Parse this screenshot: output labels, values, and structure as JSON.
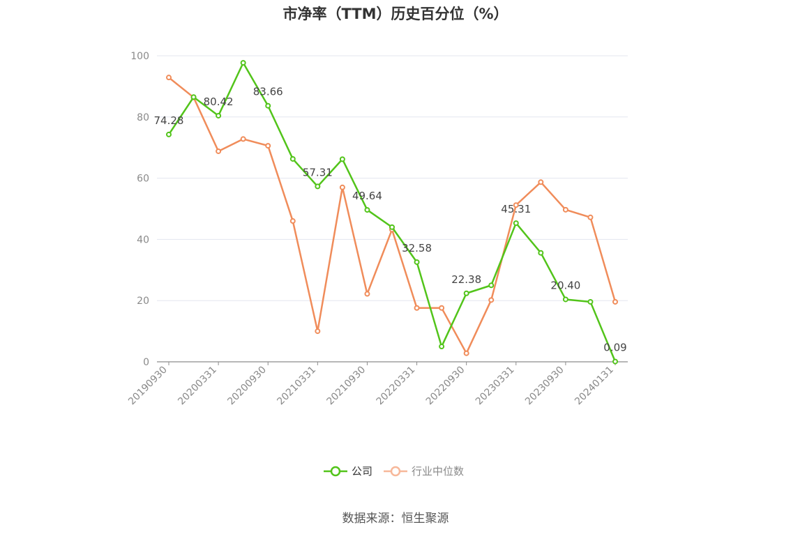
{
  "chart_data": {
    "type": "line",
    "title": "市净率（TTM）历史百分位（%）",
    "ylim": [
      0,
      100
    ],
    "yticks": [
      0,
      20,
      40,
      60,
      80,
      100
    ],
    "grid": true,
    "legend_position": "bottom-center",
    "x": [
      "20190930",
      "20191231",
      "20200331",
      "20200630",
      "20200930",
      "20201231",
      "20210331",
      "20210630",
      "20210930",
      "20211231",
      "20220331",
      "20220630",
      "20220930",
      "20221231",
      "20230331",
      "20230630",
      "20230930",
      "20231231",
      "20240131"
    ],
    "x_tick_labels": [
      "20190930",
      "20200331",
      "20200930",
      "20210331",
      "20210930",
      "20220331",
      "20220930",
      "20230331",
      "20230930",
      "20240131"
    ],
    "series": [
      {
        "name": "公司",
        "color": "#52c41a",
        "values": [
          74.28,
          86.5,
          80.42,
          97.7,
          83.66,
          66.3,
          57.31,
          66.2,
          49.64,
          44.0,
          32.58,
          5.0,
          22.38,
          25.0,
          45.31,
          35.6,
          20.4,
          19.6,
          0.09
        ],
        "labels": [
          "74.28",
          "",
          "80.42",
          "",
          "83.66",
          "",
          "57.31",
          "",
          "49.64",
          "",
          "32.58",
          "",
          "22.38",
          "",
          "45.31",
          "",
          "20.40",
          "",
          "0.09"
        ]
      },
      {
        "name": "行业中位数",
        "color": "#f08c5a",
        "values": [
          92.9,
          86.4,
          68.8,
          72.8,
          70.6,
          46.0,
          10.0,
          57.0,
          22.2,
          43.2,
          17.6,
          17.6,
          2.8,
          20.2,
          51.2,
          58.7,
          49.7,
          47.2,
          19.6
        ]
      }
    ]
  },
  "source_text": "数据来源：恒生聚源"
}
